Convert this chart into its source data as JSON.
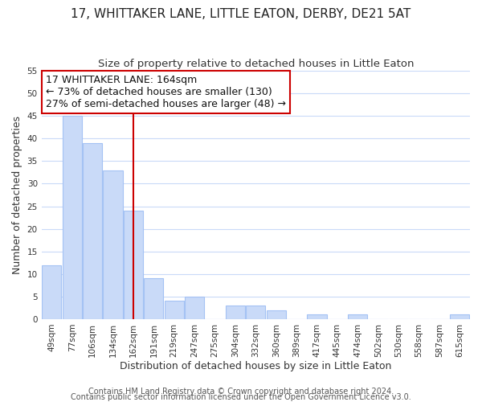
{
  "title": "17, WHITTAKER LANE, LITTLE EATON, DERBY, DE21 5AT",
  "subtitle": "Size of property relative to detached houses in Little Eaton",
  "xlabel": "Distribution of detached houses by size in Little Eaton",
  "ylabel": "Number of detached properties",
  "bar_labels": [
    "49sqm",
    "77sqm",
    "106sqm",
    "134sqm",
    "162sqm",
    "191sqm",
    "219sqm",
    "247sqm",
    "275sqm",
    "304sqm",
    "332sqm",
    "360sqm",
    "389sqm",
    "417sqm",
    "445sqm",
    "474sqm",
    "502sqm",
    "530sqm",
    "558sqm",
    "587sqm",
    "615sqm"
  ],
  "bar_values": [
    12,
    45,
    39,
    33,
    24,
    9,
    4,
    5,
    0,
    3,
    3,
    2,
    0,
    1,
    0,
    1,
    0,
    0,
    0,
    0,
    1
  ],
  "bar_color": "#c9daf8",
  "bar_edge_color": "#a4c2f4",
  "vline_x": 4,
  "vline_color": "#cc0000",
  "annotation_title": "17 WHITTAKER LANE: 164sqm",
  "annotation_line1": "← 73% of detached houses are smaller (130)",
  "annotation_line2": "27% of semi-detached houses are larger (48) →",
  "annotation_box_color": "#ffffff",
  "annotation_box_edge": "#cc0000",
  "ylim": [
    0,
    55
  ],
  "yticks": [
    0,
    5,
    10,
    15,
    20,
    25,
    30,
    35,
    40,
    45,
    50,
    55
  ],
  "footer1": "Contains HM Land Registry data © Crown copyright and database right 2024.",
  "footer2": "Contains public sector information licensed under the Open Government Licence v3.0.",
  "background_color": "#ffffff",
  "grid_color": "#c9daf8",
  "title_fontsize": 11,
  "subtitle_fontsize": 9.5,
  "axis_label_fontsize": 9,
  "tick_fontsize": 7.5,
  "annotation_fontsize": 9,
  "footer_fontsize": 7
}
